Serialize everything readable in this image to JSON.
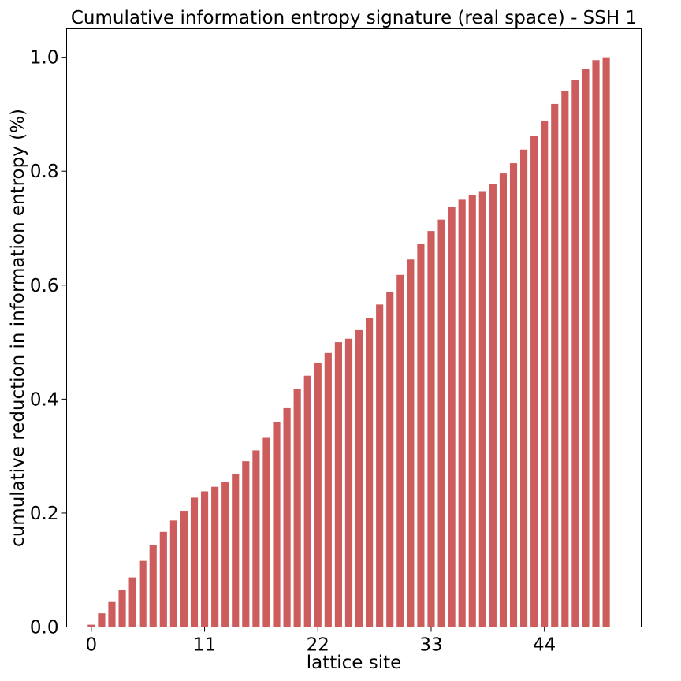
{
  "chart_data": {
    "type": "bar",
    "title": "Cumulative information entropy signature (real space) - SSH 1",
    "xlabel": "lattice site",
    "ylabel": "cumulative reduction in information entropy (%)",
    "xlim": [
      -2.4,
      53.4
    ],
    "ylim": [
      0,
      1.05
    ],
    "xticks": [
      0,
      11,
      22,
      33,
      44
    ],
    "yticks": [
      0.0,
      0.2,
      0.4,
      0.6,
      0.8,
      1.0
    ],
    "ytick_labels": [
      "0.0",
      "0.2",
      "0.4",
      "0.6",
      "0.8",
      "1.0"
    ],
    "bar_width": 0.7,
    "bar_color": "#cd5c5c",
    "x": [
      0,
      1,
      2,
      3,
      4,
      5,
      6,
      7,
      8,
      9,
      10,
      11,
      12,
      13,
      14,
      15,
      16,
      17,
      18,
      19,
      20,
      21,
      22,
      23,
      24,
      25,
      26,
      27,
      28,
      29,
      30,
      31,
      32,
      33,
      34,
      35,
      36,
      37,
      38,
      39,
      40,
      41,
      42,
      43,
      44,
      45,
      46,
      47,
      48,
      49,
      50
    ],
    "values": [
      0.004,
      0.024,
      0.044,
      0.065,
      0.087,
      0.116,
      0.144,
      0.167,
      0.187,
      0.204,
      0.227,
      0.238,
      0.246,
      0.255,
      0.268,
      0.291,
      0.31,
      0.332,
      0.359,
      0.384,
      0.418,
      0.441,
      0.463,
      0.481,
      0.5,
      0.506,
      0.521,
      0.542,
      0.566,
      0.588,
      0.618,
      0.645,
      0.673,
      0.695,
      0.715,
      0.737,
      0.75,
      0.758,
      0.765,
      0.778,
      0.796,
      0.814,
      0.838,
      0.862,
      0.888,
      0.918,
      0.94,
      0.96,
      0.979,
      0.995,
      1.0
    ]
  }
}
